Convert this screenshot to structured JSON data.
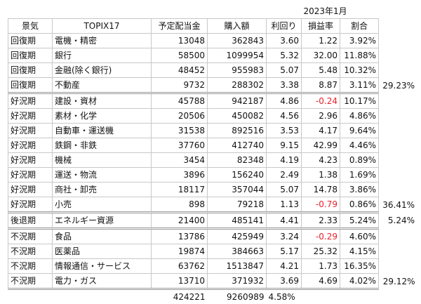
{
  "date_label": "2023年1月",
  "headers": [
    "景気",
    "TOPIX17",
    "予定配当金",
    "購入額",
    "利回り",
    "損益率",
    "割合"
  ],
  "rows": [
    {
      "phase": "回復期",
      "sector": "電機・精密",
      "dividend": "13048",
      "purchase": "362843",
      "yield": "3.60",
      "pl": "1.22",
      "share": "3.92%",
      "group_total": ""
    },
    {
      "phase": "回復期",
      "sector": "銀行",
      "dividend": "58500",
      "purchase": "1099954",
      "yield": "5.32",
      "pl": "32.00",
      "share": "11.88%",
      "group_total": ""
    },
    {
      "phase": "回復期",
      "sector": "金融(除く銀行)",
      "dividend": "48452",
      "purchase": "955983",
      "yield": "5.07",
      "pl": "5.48",
      "share": "10.32%",
      "group_total": ""
    },
    {
      "phase": "回復期",
      "sector": "不動産",
      "dividend": "9732",
      "purchase": "288302",
      "yield": "3.38",
      "pl": "8.87",
      "share": "3.11%",
      "group_total": "29.23%"
    },
    {
      "phase": "好況期",
      "sector": "建設・資材",
      "dividend": "45788",
      "purchase": "942187",
      "yield": "4.86",
      "pl": "-0.24",
      "share": "10.17%",
      "group_total": ""
    },
    {
      "phase": "好況期",
      "sector": "素材・化学",
      "dividend": "20506",
      "purchase": "450082",
      "yield": "4.56",
      "pl": "2.96",
      "share": "4.86%",
      "group_total": ""
    },
    {
      "phase": "好況期",
      "sector": "自動車・運送機",
      "dividend": "31538",
      "purchase": "892516",
      "yield": "3.53",
      "pl": "4.17",
      "share": "9.64%",
      "group_total": ""
    },
    {
      "phase": "好況期",
      "sector": "鉄鋼・非鉄",
      "dividend": "37760",
      "purchase": "412740",
      "yield": "9.15",
      "pl": "42.99",
      "share": "4.46%",
      "group_total": ""
    },
    {
      "phase": "好況期",
      "sector": "機械",
      "dividend": "3454",
      "purchase": "82348",
      "yield": "4.19",
      "pl": "4.23",
      "share": "0.89%",
      "group_total": ""
    },
    {
      "phase": "好況期",
      "sector": "運送・物流",
      "dividend": "3896",
      "purchase": "156240",
      "yield": "2.49",
      "pl": "1.38",
      "share": "1.69%",
      "group_total": ""
    },
    {
      "phase": "好況期",
      "sector": "商社・卸売",
      "dividend": "18117",
      "purchase": "357044",
      "yield": "5.07",
      "pl": "14.78",
      "share": "3.86%",
      "group_total": ""
    },
    {
      "phase": "好況期",
      "sector": "小売",
      "dividend": "898",
      "purchase": "79218",
      "yield": "1.13",
      "pl": "-0.79",
      "share": "0.86%",
      "group_total": "36.41%"
    },
    {
      "phase": "後退期",
      "sector": "エネルギー資源",
      "dividend": "21400",
      "purchase": "485141",
      "yield": "4.41",
      "pl": "2.33",
      "share": "5.24%",
      "group_total": "5.24%"
    },
    {
      "phase": "不況期",
      "sector": "食品",
      "dividend": "13786",
      "purchase": "425949",
      "yield": "3.24",
      "pl": "-0.29",
      "share": "4.60%",
      "group_total": ""
    },
    {
      "phase": "不況期",
      "sector": "医薬品",
      "dividend": "19874",
      "purchase": "384663",
      "yield": "5.17",
      "pl": "25.32",
      "share": "4.15%",
      "group_total": ""
    },
    {
      "phase": "不況期",
      "sector": "情報通信・サービス",
      "dividend": "63762",
      "purchase": "1513847",
      "yield": "4.21",
      "pl": "1.73",
      "share": "16.35%",
      "group_total": ""
    },
    {
      "phase": "不況期",
      "sector": "電力・ガス",
      "dividend": "13710",
      "purchase": "371932",
      "yield": "3.69",
      "pl": "4.69",
      "share": "4.02%",
      "group_total": "29.12%"
    }
  ],
  "totals": {
    "dividend": "424221",
    "purchase": "9260989",
    "yield": "4.58%"
  },
  "colors": {
    "negative": "#e8202a",
    "grid": "#c8c8c8"
  }
}
